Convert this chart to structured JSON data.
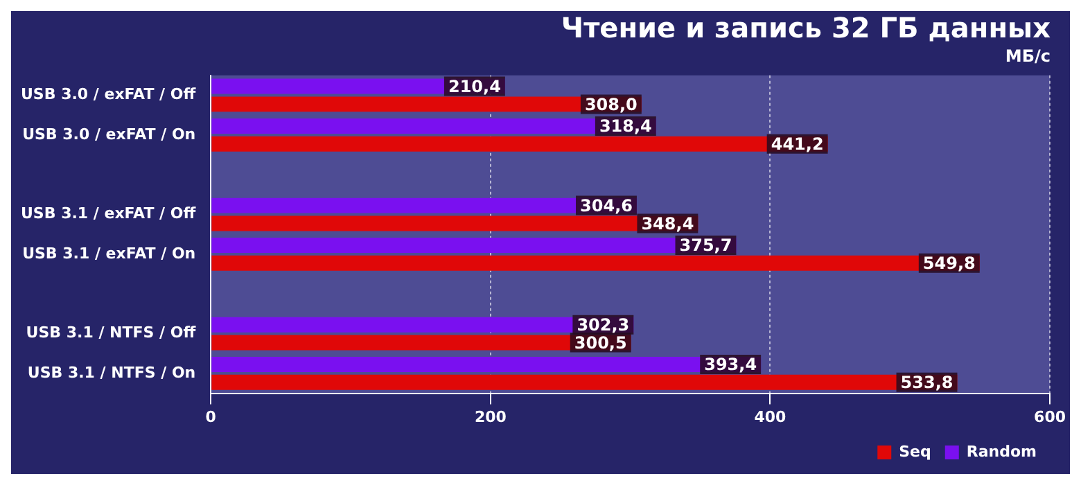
{
  "chart_data": {
    "type": "bar",
    "orientation": "horizontal",
    "title": "Чтение и запись 32 ГБ данных",
    "subtitle": "МБ/с",
    "categories": [
      "USB 3.0 / exFAT / Off",
      "USB 3.0 / exFAT / On",
      null,
      "USB 3.1 / exFAT / Off",
      "USB 3.1 / exFAT / On",
      null,
      "USB 3.1 / NTFS / Off",
      "USB 3.1 / NTFS / On"
    ],
    "series": [
      {
        "name": "Random",
        "color": "#7a10f0",
        "values": [
          210.4,
          318.4,
          null,
          304.6,
          375.7,
          null,
          302.3,
          393.4
        ],
        "value_labels": [
          "210,4",
          "318,4",
          null,
          "304,6",
          "375,7",
          null,
          "302,3",
          "393,4"
        ]
      },
      {
        "name": "Seq",
        "color": "#e00808",
        "values": [
          308.0,
          441.2,
          null,
          348.4,
          549.8,
          null,
          300.5,
          533.8
        ],
        "value_labels": [
          "308,0",
          "441,2",
          null,
          "348,4",
          "549,8",
          null,
          "300,5",
          "533,8"
        ]
      }
    ],
    "xlim": [
      0,
      600
    ],
    "xticks": [
      0,
      200,
      400,
      600
    ],
    "grid": "x",
    "legend": "bottom right"
  }
}
